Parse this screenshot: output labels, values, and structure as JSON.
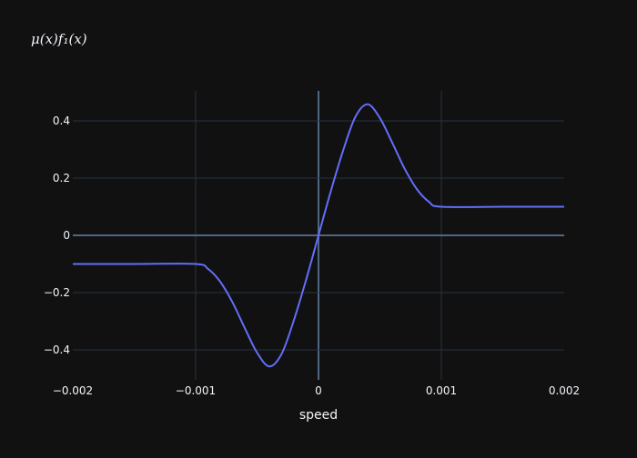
{
  "chart_data": {
    "type": "line",
    "title": "μ(x)f₁(x)",
    "xlabel": "speed",
    "ylabel": "",
    "xlim": [
      -0.002,
      0.002
    ],
    "ylim": [
      -0.505,
      0.505
    ],
    "x_ticks": [
      -0.002,
      -0.001,
      0,
      0.001,
      0.002
    ],
    "x_tick_labels": [
      "−0.002",
      "−0.001",
      "0",
      "0.001",
      "0.002"
    ],
    "y_ticks": [
      -0.4,
      -0.2,
      0,
      0.2,
      0.4
    ],
    "y_tick_labels": [
      "−0.4",
      "−0.2",
      "0",
      "0.2",
      "0.4"
    ],
    "grid": true,
    "colors": {
      "background": "#111111",
      "grid": "#283442",
      "zeroline": "#506784",
      "line": "#636efa",
      "text": "#f2f5fa"
    },
    "series": [
      {
        "x": [
          -0.002,
          -0.0015,
          -0.001,
          -0.0009,
          -0.0008,
          -0.0007,
          -0.0006,
          -0.0005,
          -0.0004,
          -0.0003,
          -0.0002,
          -0.0001,
          0,
          0.0001,
          0.0002,
          0.0003,
          0.0004,
          0.0005,
          0.0006,
          0.0007,
          0.0008,
          0.0009,
          0.001,
          0.0015,
          0.002
        ],
        "y": [
          -0.1,
          -0.1,
          -0.1,
          -0.117,
          -0.162,
          -0.234,
          -0.324,
          -0.41,
          -0.458,
          -0.414,
          -0.296,
          -0.154,
          0,
          0.154,
          0.296,
          0.414,
          0.458,
          0.41,
          0.324,
          0.234,
          0.162,
          0.117,
          0.1,
          0.1,
          0.1
        ]
      }
    ]
  }
}
